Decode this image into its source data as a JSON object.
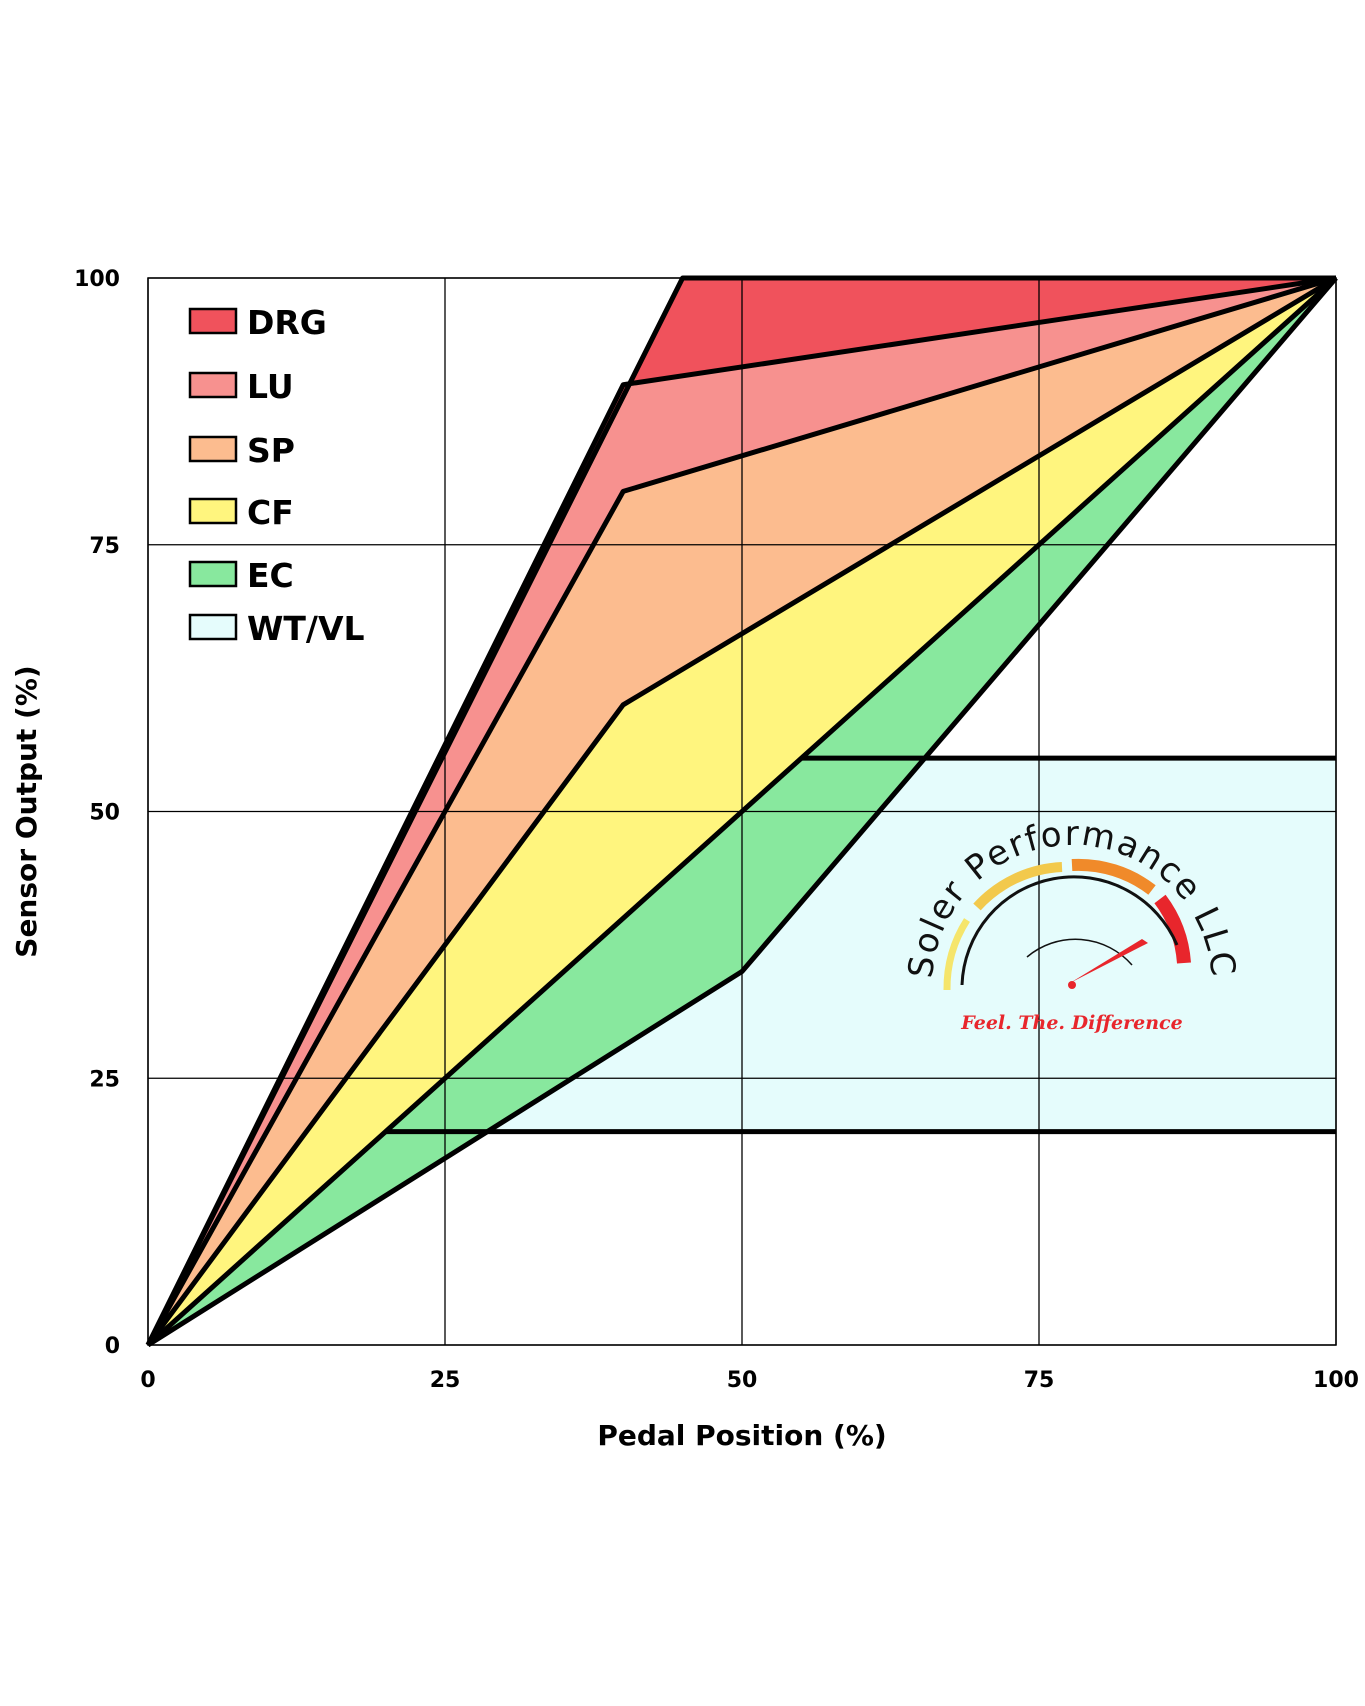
{
  "chart_data": {
    "type": "area",
    "title": "",
    "xlabel": "Pedal Position (%)",
    "ylabel": "Sensor Output (%)",
    "xlim": [
      0,
      100
    ],
    "ylim": [
      0,
      100
    ],
    "xticks": [
      "0",
      "25",
      "50",
      "75",
      "100"
    ],
    "yticks": [
      "0",
      "25",
      "50",
      "75",
      "100"
    ],
    "grid": true,
    "legend_position": "top-left",
    "series": [
      {
        "name": "DRG",
        "color": "#F0525C",
        "upper": [
          [
            0,
            0
          ],
          [
            45,
            100
          ],
          [
            100,
            100
          ]
        ],
        "lower": [
          [
            0,
            0
          ],
          [
            40,
            90
          ],
          [
            100,
            100
          ]
        ]
      },
      {
        "name": "LU",
        "color": "#F7918F",
        "upper": [
          [
            0,
            0
          ],
          [
            40,
            90
          ],
          [
            100,
            100
          ]
        ],
        "lower": [
          [
            0,
            0
          ],
          [
            40,
            80
          ],
          [
            100,
            100
          ]
        ]
      },
      {
        "name": "SP",
        "color": "#FCBC8F",
        "upper": [
          [
            0,
            0
          ],
          [
            40,
            80
          ],
          [
            100,
            100
          ]
        ],
        "lower": [
          [
            0,
            0
          ],
          [
            40,
            60
          ],
          [
            100,
            100
          ]
        ]
      },
      {
        "name": "CF",
        "color": "#FFF57E",
        "upper": [
          [
            0,
            0
          ],
          [
            40,
            60
          ],
          [
            100,
            100
          ]
        ],
        "lower": [
          [
            0,
            0
          ],
          [
            100,
            100
          ]
        ]
      },
      {
        "name": "EC",
        "color": "#88E89E",
        "upper": [
          [
            0,
            0
          ],
          [
            100,
            100
          ]
        ],
        "lower": [
          [
            0,
            0
          ],
          [
            50,
            35
          ],
          [
            100,
            100
          ]
        ]
      },
      {
        "name": "WT/VL",
        "color": "#E5FCFC",
        "upper": [
          [
            55,
            55
          ],
          [
            100,
            55
          ]
        ],
        "lower": [
          [
            20,
            20
          ],
          [
            100,
            20
          ]
        ]
      }
    ]
  },
  "logo": {
    "text": "Soler Performance LLC",
    "tagline": "Feel. The. Difference"
  }
}
